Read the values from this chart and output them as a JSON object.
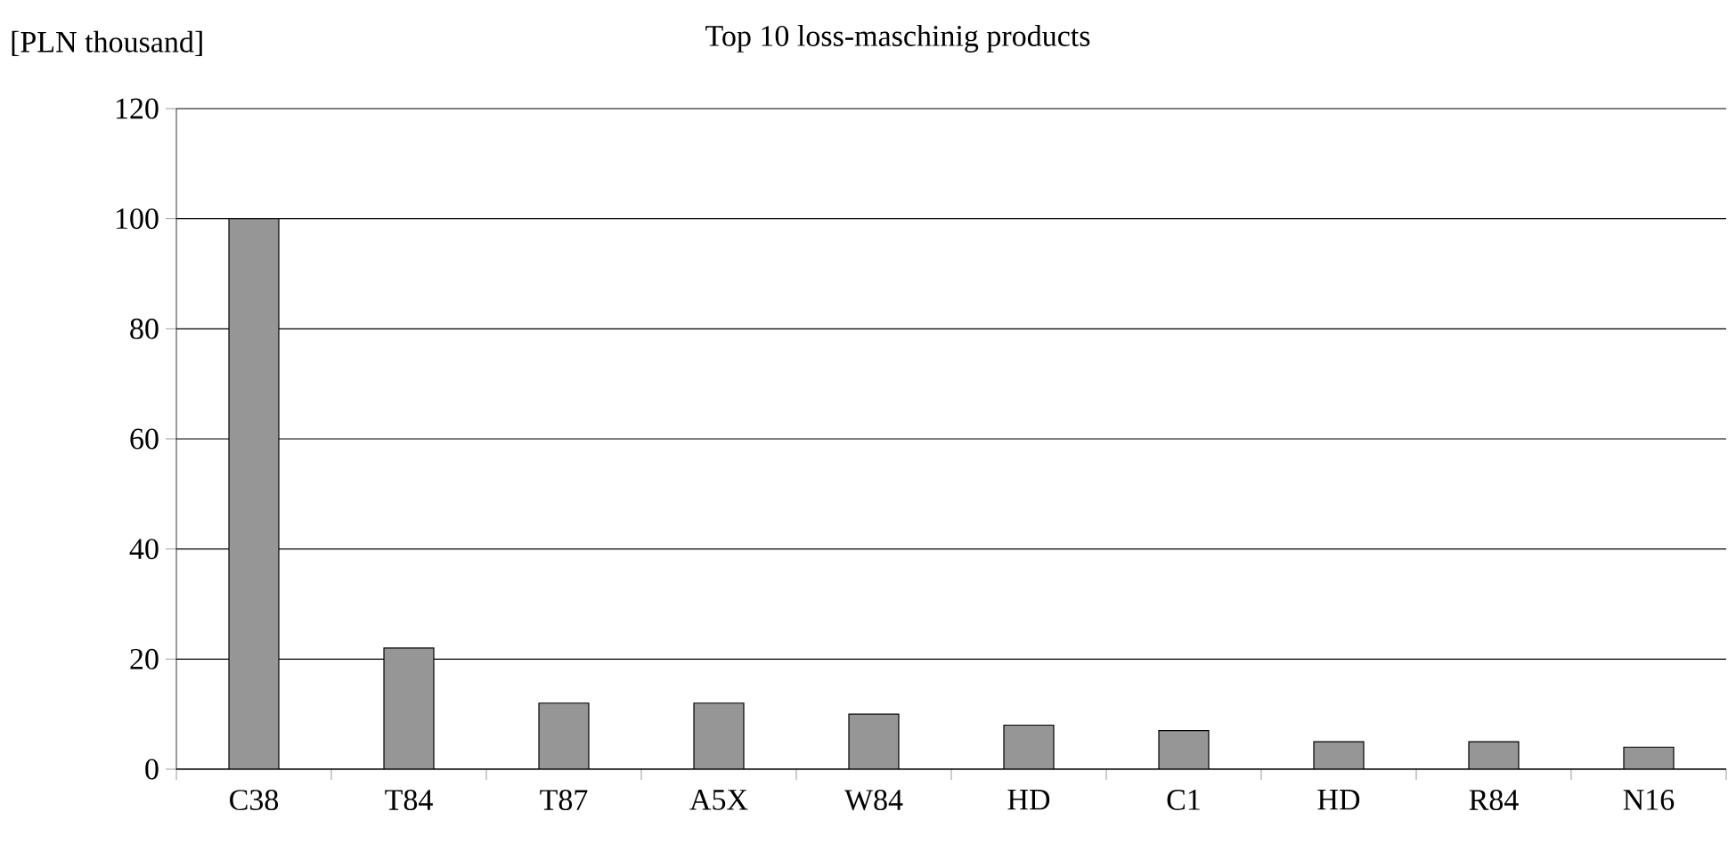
{
  "chart_data": {
    "type": "bar",
    "title": "Top 10 loss-maschinig products",
    "ylabel": "[PLN thousand]",
    "categories": [
      "C38",
      "T84",
      "T87",
      "A5X",
      "W84",
      "HD",
      "C1",
      "HD",
      "R84",
      "N16"
    ],
    "values": [
      100,
      22,
      12,
      12,
      10,
      8,
      7,
      5,
      5,
      4
    ],
    "color": "#969696",
    "ylim": [
      0,
      120
    ],
    "yticks": [
      0,
      20,
      40,
      60,
      80,
      100,
      120
    ],
    "grid": "y"
  }
}
